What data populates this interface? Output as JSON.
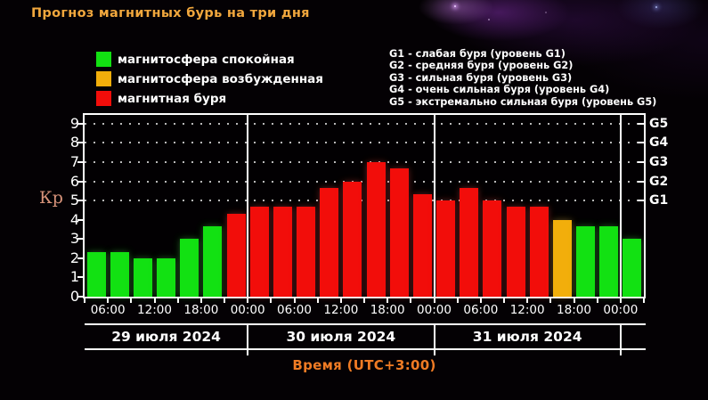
{
  "title": "Прогноз магнитных бурь на три дня",
  "colors": {
    "quiet": "#12e112",
    "excited": "#f2ae0b",
    "storm": "#f20d0a",
    "title": "#f1a73d",
    "axis_title": "#ef7b24",
    "kp_label": "#d8937a",
    "text": "#ffffff"
  },
  "legend": {
    "items": [
      {
        "label": "магнитосфера спокойная",
        "status": "quiet"
      },
      {
        "label": "магнитосфера возбужденная",
        "status": "excited"
      },
      {
        "label": "магнитная буря",
        "status": "storm"
      }
    ]
  },
  "storm_levels_legend": [
    "G1 - слабая буря (уровень G1)",
    "G2 - средняя буря (уровень G2)",
    "G3 - сильная буря (уровень G3)",
    "G4 - очень сильная буря (уровень G4)",
    "G5 - экстремально сильная буря (уровень G5)"
  ],
  "chart_data": {
    "type": "bar",
    "title": "Прогноз магнитных бурь на три дня",
    "ylabel": "Кр",
    "xlabel": "Время (UTC+3:00)",
    "ylim": [
      0,
      9.46
    ],
    "yticks": [
      0,
      1,
      2,
      3,
      4,
      5,
      6,
      7,
      8,
      9
    ],
    "grid_dotted_levels": [
      5,
      6,
      7,
      8,
      9
    ],
    "right_axis_labels": [
      {
        "label": "G1",
        "value": 5
      },
      {
        "label": "G2",
        "value": 6
      },
      {
        "label": "G3",
        "value": 7
      },
      {
        "label": "G4",
        "value": 8
      },
      {
        "label": "G5",
        "value": 9
      }
    ],
    "x_tick_labels": [
      "06:00",
      "12:00",
      "18:00",
      "00:00",
      "06:00",
      "12:00",
      "18:00",
      "00:00",
      "06:00",
      "12:00",
      "18:00",
      "00:00"
    ],
    "hours_per_bar": 3,
    "days": [
      {
        "date": "29 июля 2024",
        "bars": [
          {
            "value": 2.33,
            "status": "quiet"
          },
          {
            "value": 2.33,
            "status": "quiet"
          },
          {
            "value": 2.0,
            "status": "quiet"
          },
          {
            "value": 2.0,
            "status": "quiet"
          },
          {
            "value": 3.0,
            "status": "quiet"
          },
          {
            "value": 3.67,
            "status": "quiet"
          },
          {
            "value": 4.33,
            "status": "storm"
          }
        ]
      },
      {
        "date": "30 июля 2024",
        "bars": [
          {
            "value": 4.67,
            "status": "storm"
          },
          {
            "value": 4.67,
            "status": "storm"
          },
          {
            "value": 4.67,
            "status": "storm"
          },
          {
            "value": 5.67,
            "status": "storm"
          },
          {
            "value": 6.0,
            "status": "storm"
          },
          {
            "value": 7.0,
            "status": "storm"
          },
          {
            "value": 6.67,
            "status": "storm"
          },
          {
            "value": 5.33,
            "status": "storm"
          }
        ]
      },
      {
        "date": "31 июля 2024",
        "bars": [
          {
            "value": 5.0,
            "status": "storm"
          },
          {
            "value": 5.67,
            "status": "storm"
          },
          {
            "value": 5.0,
            "status": "storm"
          },
          {
            "value": 4.67,
            "status": "storm"
          },
          {
            "value": 4.67,
            "status": "storm"
          },
          {
            "value": 4.0,
            "status": "excited"
          },
          {
            "value": 3.67,
            "status": "quiet"
          },
          {
            "value": 3.67,
            "status": "quiet"
          }
        ]
      },
      {
        "date": "",
        "bars": [
          {
            "value": 3.0,
            "status": "quiet"
          }
        ]
      }
    ]
  }
}
